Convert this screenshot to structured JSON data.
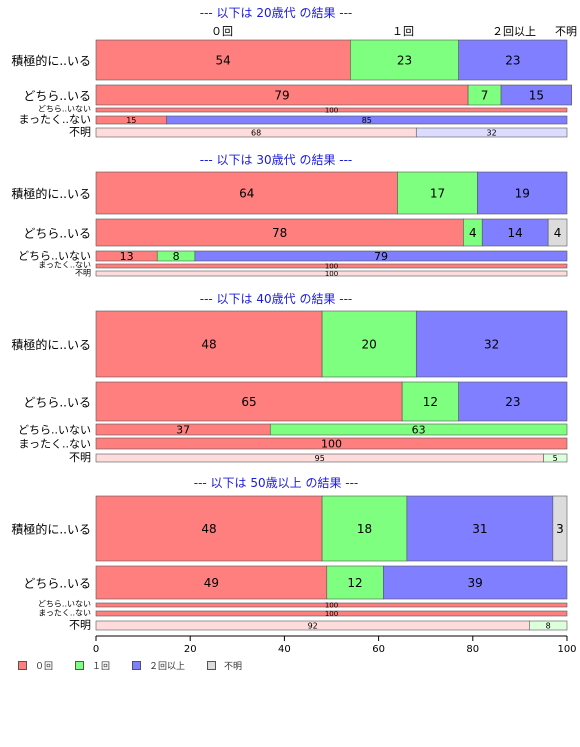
{
  "chart_data": {
    "type": "bar",
    "orientation": "horizontal",
    "stacked": true,
    "xlim": [
      0,
      100
    ],
    "xticks": [
      "0",
      "20",
      "40",
      "60",
      "80",
      "100"
    ],
    "legend": {
      "placement": "bottom-left",
      "entries": [
        "０回",
        "１回",
        "２回以上",
        "不明"
      ]
    },
    "column_labels": [
      "０回",
      "１回",
      "２回以上",
      "不明"
    ],
    "colors": {
      "zero": "#FF7F7F",
      "once": "#7FFF7F",
      "twice": "#7F7FFF",
      "unknown": "#DCDCDC",
      "title": "#1A1AE6"
    },
    "panels": [
      {
        "title": "--- 以下は 20歳代 の結果 ---",
        "show_column_labels": true,
        "rows": [
          {
            "label": "積極的に..いる",
            "values": [
              54,
              23,
              23,
              0
            ],
            "labels": [
              "54",
              "23",
              "23",
              ""
            ]
          },
          {
            "label": "どちら..いる",
            "values": [
              79,
              7,
              15,
              0
            ],
            "labels": [
              "79",
              "7",
              "15",
              ""
            ]
          },
          {
            "label": "どちら..いない",
            "values": [
              100,
              0,
              0,
              0
            ],
            "labels": [
              "100",
              "",
              "",
              ""
            ]
          },
          {
            "label": "まったく..ない",
            "values": [
              15,
              0,
              85,
              0
            ],
            "labels": [
              "15",
              "",
              "85",
              ""
            ]
          },
          {
            "label": "不明",
            "values": [
              68,
              0,
              32,
              0
            ],
            "labels": [
              "68",
              "",
              "32",
              ""
            ],
            "pale": true
          }
        ]
      },
      {
        "title": "--- 以下は 30歳代 の結果 ---",
        "rows": [
          {
            "label": "積極的に..いる",
            "values": [
              64,
              17,
              19,
              0
            ],
            "labels": [
              "64",
              "17",
              "19",
              ""
            ]
          },
          {
            "label": "どちら..いる",
            "values": [
              78,
              4,
              14,
              4
            ],
            "labels": [
              "78",
              "4",
              "14",
              "4"
            ]
          },
          {
            "label": "どちら..いない",
            "values": [
              13,
              8,
              79,
              0
            ],
            "labels": [
              "13",
              "8",
              "79",
              ""
            ]
          },
          {
            "label": "まったく..ない",
            "values": [
              100,
              0,
              0,
              0
            ],
            "labels": [
              "100",
              "",
              "",
              ""
            ]
          },
          {
            "label": "不明",
            "values": [
              100,
              0,
              0,
              0
            ],
            "labels": [
              "100",
              "",
              "",
              ""
            ],
            "pale": true
          }
        ]
      },
      {
        "title": "--- 以下は 40歳代 の結果 ---",
        "rows": [
          {
            "label": "積極的に..いる",
            "values": [
              48,
              20,
              32,
              0
            ],
            "labels": [
              "48",
              "20",
              "32",
              ""
            ]
          },
          {
            "label": "どちら..いる",
            "values": [
              65,
              12,
              23,
              0
            ],
            "labels": [
              "65",
              "12",
              "23",
              ""
            ]
          },
          {
            "label": "どちら..いない",
            "values": [
              37,
              63,
              0,
              0
            ],
            "labels": [
              "37",
              "63",
              "",
              ""
            ]
          },
          {
            "label": "まったく..ない",
            "values": [
              100,
              0,
              0,
              0
            ],
            "labels": [
              "100",
              "",
              "",
              ""
            ]
          },
          {
            "label": "不明",
            "values": [
              95,
              5,
              0,
              0
            ],
            "labels": [
              "95",
              "5",
              "",
              ""
            ],
            "pale": true
          }
        ]
      },
      {
        "title": "--- 以下は 50歳以上 の結果 ---",
        "rows": [
          {
            "label": "積極的に..いる",
            "values": [
              48,
              18,
              31,
              3
            ],
            "labels": [
              "48",
              "18",
              "31",
              "3"
            ]
          },
          {
            "label": "どちら..いる",
            "values": [
              49,
              12,
              39,
              0
            ],
            "labels": [
              "49",
              "12",
              "39",
              ""
            ]
          },
          {
            "label": "どちら..いない",
            "values": [
              100,
              0,
              0,
              0
            ],
            "labels": [
              "100",
              "",
              "",
              ""
            ]
          },
          {
            "label": "まったく..ない",
            "values": [
              100,
              0,
              0,
              0
            ],
            "labels": [
              "100",
              "",
              "",
              ""
            ]
          },
          {
            "label": "不明",
            "values": [
              92,
              8,
              0,
              0
            ],
            "labels": [
              "92",
              "8",
              "",
              ""
            ],
            "pale": true
          }
        ]
      }
    ]
  }
}
